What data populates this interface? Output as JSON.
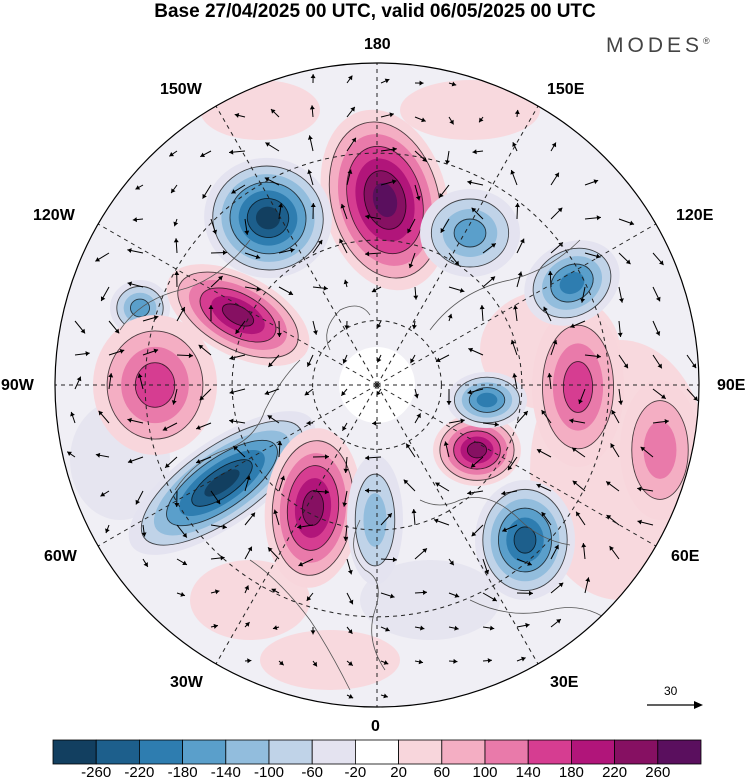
{
  "title": "Base 27/04/2025 00 UTC, valid 06/05/2025 00 UTC",
  "brand": "MODES",
  "brand_mark": "®",
  "longitude_labels": {
    "n180": "180",
    "w150": "150W",
    "e150": "150E",
    "w120": "120W",
    "e120": "120E",
    "w90": "90W",
    "e90": "90E",
    "w60": "60W",
    "e60": "60E",
    "w30": "30W",
    "e30": "30E",
    "s0": "0"
  },
  "vector_scale_label": "30",
  "colorbar": {
    "ticks": [
      "-260",
      "-220",
      "-180",
      "-140",
      "-100",
      "-60",
      "-20",
      "20",
      "60",
      "100",
      "140",
      "180",
      "220",
      "260"
    ],
    "colors": [
      "#123f60",
      "#1d5f8c",
      "#2e7db0",
      "#5a9fcb",
      "#92bddd",
      "#c0d3e8",
      "#e4e3f0",
      "#ffffff",
      "#f8d6dc",
      "#f4aec3",
      "#e97aaa",
      "#d63d91",
      "#b1157a",
      "#861062",
      "#5a0f5e"
    ]
  },
  "anomaly_centers": [
    {
      "name": "high-north-pacific",
      "value": 260
    },
    {
      "name": "low-alaska",
      "value": -260
    },
    {
      "name": "high-canada-west",
      "value": 220
    },
    {
      "name": "low-canada-far-west",
      "value": -140
    },
    {
      "name": "high-hudson",
      "value": 140
    },
    {
      "name": "low-north-atlantic",
      "value": -260
    },
    {
      "name": "high-greenland-south",
      "value": 220
    },
    {
      "name": "low-europe-west",
      "value": -100
    },
    {
      "name": "high-scandinavia",
      "value": 220
    },
    {
      "name": "low-russia",
      "value": -220
    },
    {
      "name": "high-siberia",
      "value": 140
    },
    {
      "name": "low-siberia-north",
      "value": -180
    },
    {
      "name": "low-east-siberia",
      "value": -180
    },
    {
      "name": "low-kamchatka",
      "value": -140
    },
    {
      "name": "high-mongolia",
      "value": 100
    }
  ]
}
